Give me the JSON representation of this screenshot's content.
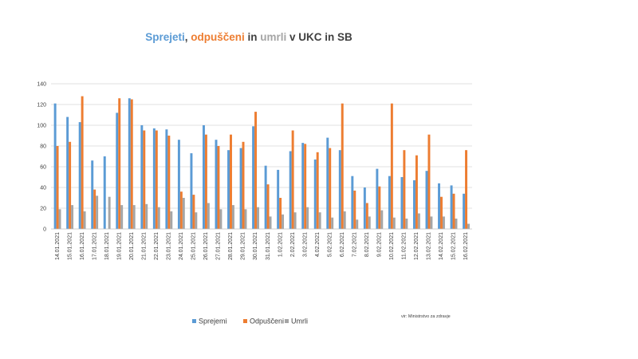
{
  "chart_data": {
    "type": "bar",
    "title": {
      "parts": [
        {
          "text": "Sprejeti",
          "color": "#5B9BD5"
        },
        {
          "text": ", ",
          "color": "#404040"
        },
        {
          "text": "odpuščeni",
          "color": "#ED7D31"
        },
        {
          "text": " in ",
          "color": "#404040"
        },
        {
          "text": "umrli",
          "color": "#A5A5A5"
        },
        {
          "text": " v UKC in SB",
          "color": "#404040"
        }
      ]
    },
    "categories": [
      "14.01.2021",
      "15.01.2021",
      "16.01.2021",
      "17.01.2021",
      "18.01.2021",
      "19.01.2021",
      "20.01.2021",
      "21.01.2021",
      "22.01.2021",
      "23.01.2021",
      "24.01.2021",
      "25.01.2021",
      "26.01.2021",
      "27.01.2021",
      "28.01.2021",
      "29.01.2021",
      "30.01.2021",
      "31.01.2021",
      "1.02.2021",
      "2.02.2021",
      "3.02.2021",
      "4.02.2021",
      "5.02.2021",
      "6.02.2021",
      "7.02.2021",
      "8.02.2021",
      "9.02.2021",
      "10.02.2021",
      "11.02.2021",
      "12.02.2021",
      "13.02.2021",
      "14.02.2021",
      "15.02.2021",
      "16.02.2021"
    ],
    "series": [
      {
        "name": "Sprejemi",
        "color": "#5B9BD5",
        "values": [
          121,
          108,
          103,
          66,
          70,
          112,
          126,
          100,
          97,
          96,
          86,
          73,
          100,
          86,
          76,
          78,
          99,
          61,
          57,
          75,
          83,
          67,
          88,
          76,
          51,
          40,
          58,
          51,
          50,
          47,
          56,
          44,
          42,
          34
        ]
      },
      {
        "name": "Odpuščeni",
        "color": "#ED7D31",
        "values": [
          80,
          84,
          128,
          38,
          0,
          126,
          125,
          95,
          95,
          90,
          36,
          33,
          91,
          80,
          91,
          84,
          113,
          43,
          30,
          95,
          82,
          74,
          78,
          121,
          37,
          25,
          41,
          121,
          76,
          71,
          91,
          31,
          34,
          76
        ]
      },
      {
        "name": "Umrli",
        "color": "#A5A5A5",
        "values": [
          19,
          23,
          17,
          32,
          31,
          23,
          23,
          24,
          21,
          17,
          30,
          16,
          25,
          19,
          23,
          19,
          21,
          12,
          14,
          16,
          21,
          16,
          11,
          17,
          9,
          12,
          18,
          11,
          10,
          15,
          12,
          12,
          10,
          5
        ]
      }
    ],
    "ylim": [
      0,
      140
    ],
    "yticks": [
      0,
      20,
      40,
      60,
      80,
      100,
      120,
      140
    ],
    "grid": true,
    "legend": "bottom",
    "source_note": "vir: Ministrstvo za zdravje"
  }
}
